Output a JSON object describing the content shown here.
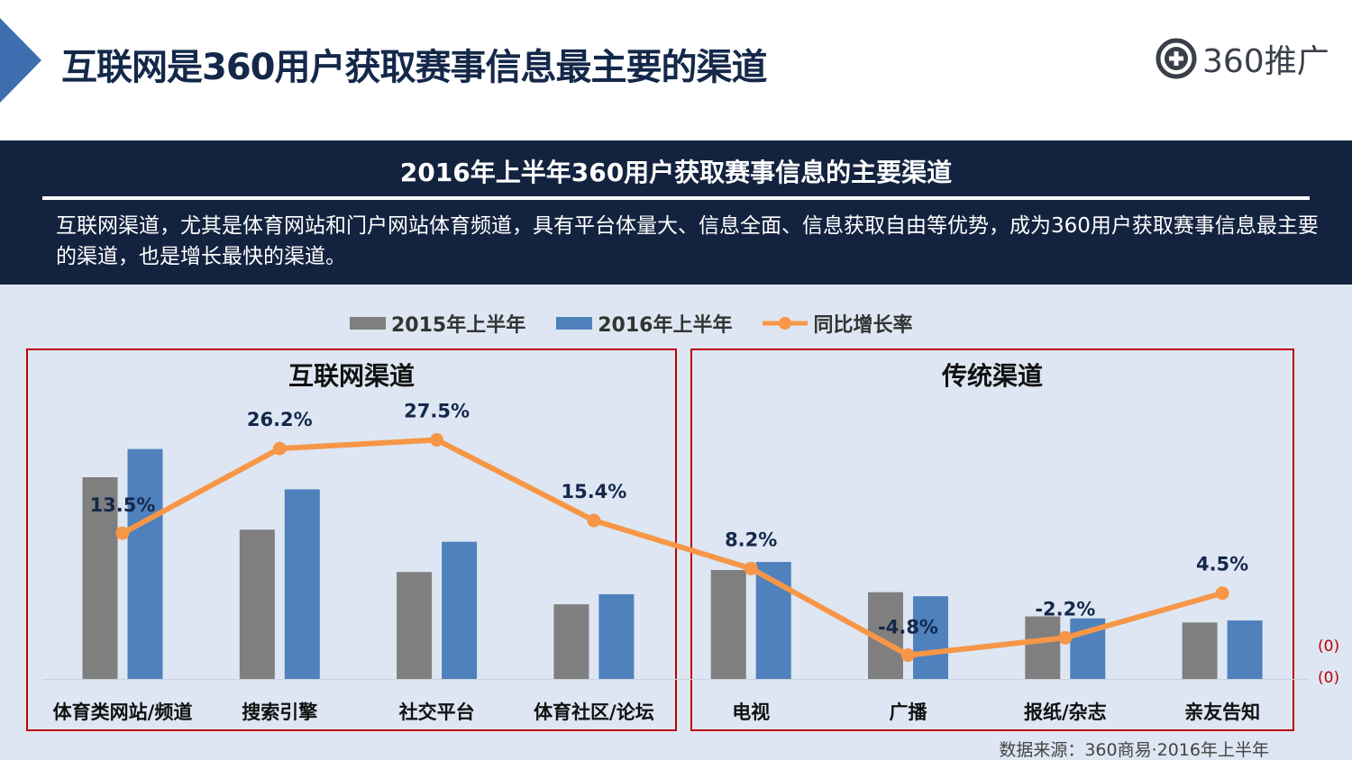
{
  "header": {
    "title": "互联网是360用户获取赛事信息最主要的渠道",
    "logo_text": "360推广"
  },
  "band": {
    "title": "2016年上半年360用户获取赛事信息的主要渠道",
    "description": "互联网渠道，尤其是体育网站和门户网站体育频道，具有平台体量大、信息全面、信息获取自由等优势，成为360用户获取赛事信息最主要的渠道，也是增长最快的渠道。"
  },
  "groups": {
    "internet_label": "互联网渠道",
    "traditional_label": "传统渠道"
  },
  "side_labels": [
    "(0)",
    "(0)"
  ],
  "source": "数据来源：360商易·2016年上半年",
  "colors": {
    "series_2015": "#7f7f7f",
    "series_2016": "#4f81bd",
    "growth_line": "#f79646",
    "box_border": "#c00000",
    "header_band": "#13233f",
    "title_text": "#14284a"
  },
  "chart_data": {
    "type": "bar",
    "categories": [
      "体育类网站/频道",
      "搜索引擎",
      "社交平台",
      "体育社区/论坛",
      "电视",
      "广播",
      "报纸/杂志",
      "亲友告知"
    ],
    "series": [
      {
        "name": "2015年上半年",
        "values": [
          100,
          74,
          53,
          37,
          54,
          43,
          31,
          28
        ]
      },
      {
        "name": "2016年上半年",
        "values": [
          114,
          94,
          68,
          42,
          58,
          41,
          30,
          29
        ]
      }
    ],
    "line_series": {
      "name": "同比增长率",
      "values": [
        13.5,
        26.2,
        27.5,
        15.4,
        8.2,
        -4.8,
        -2.2,
        4.5
      ],
      "labels": [
        "13.5%",
        "26.2%",
        "27.5%",
        "15.4%",
        "8.2%",
        "-4.8%",
        "-2.2%",
        "4.5%"
      ]
    },
    "legend_position": "top",
    "grid": false
  }
}
